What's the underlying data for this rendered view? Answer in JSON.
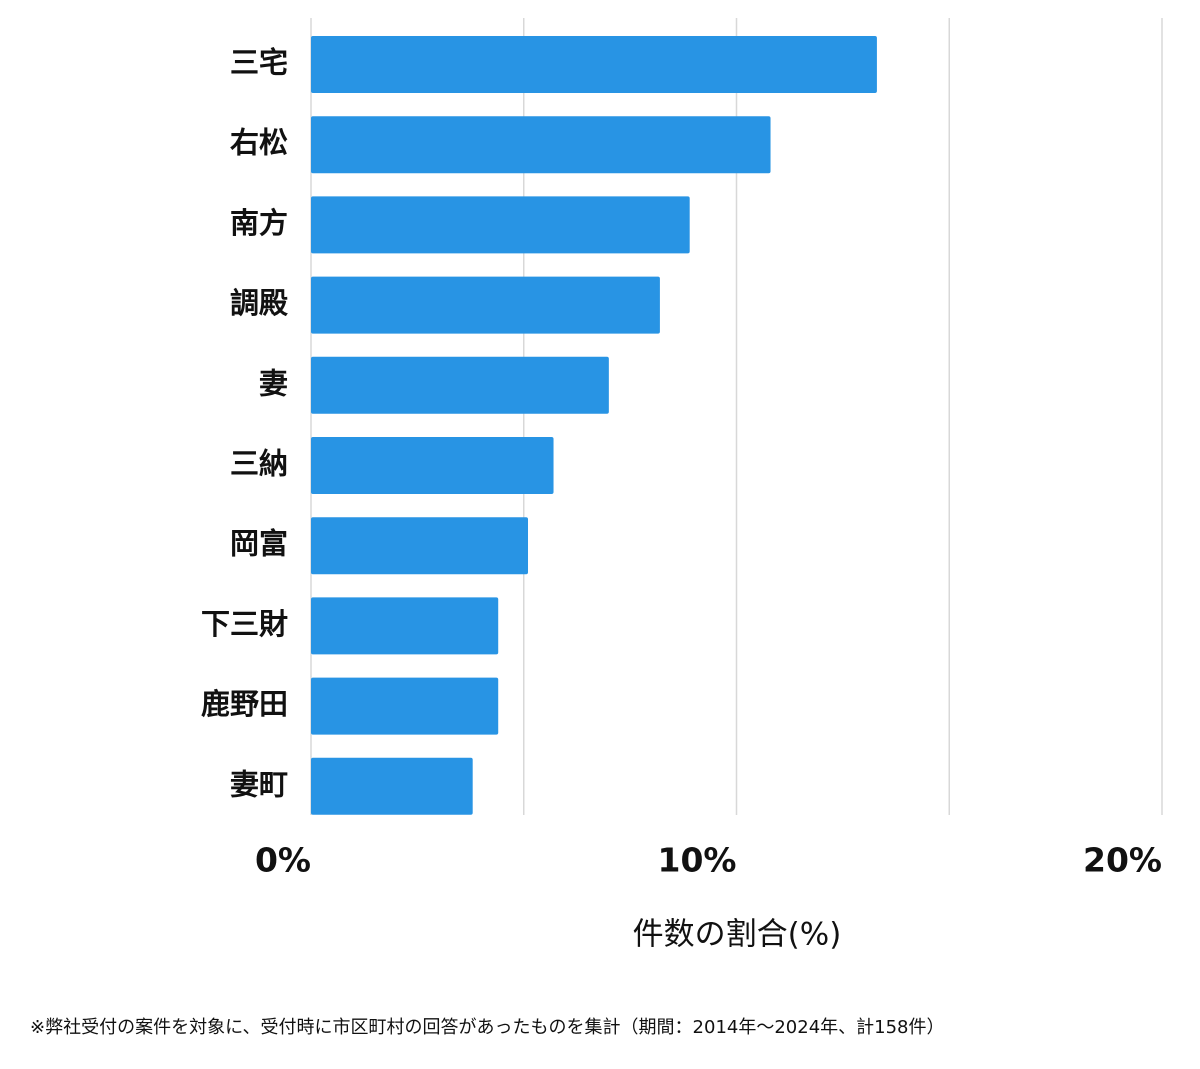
{
  "chart_data": {
    "type": "hbar",
    "categories": [
      "三宅",
      "右松",
      "南方",
      "調殿",
      "妻",
      "三納",
      "岡富",
      "下三財",
      "鹿野田",
      "妻町"
    ],
    "values": [
      13.3,
      10.8,
      8.9,
      8.2,
      7.0,
      5.7,
      5.1,
      4.4,
      4.4,
      3.8
    ],
    "color": "#2894e4",
    "xlim": [
      0,
      20
    ],
    "xticks": [
      {
        "value": 0,
        "label": "0%"
      },
      {
        "value": 10,
        "label": "10%"
      },
      {
        "value": 20,
        "label": "20%"
      }
    ],
    "minor_xticks": [
      5,
      15
    ],
    "grid": true,
    "x_label": "件数の割合(%)",
    "footnote": "※弊社受付の案件を対象に、受付時に市区町村の回答があったものを集計（期間：2014年〜2024年、計158件）"
  }
}
